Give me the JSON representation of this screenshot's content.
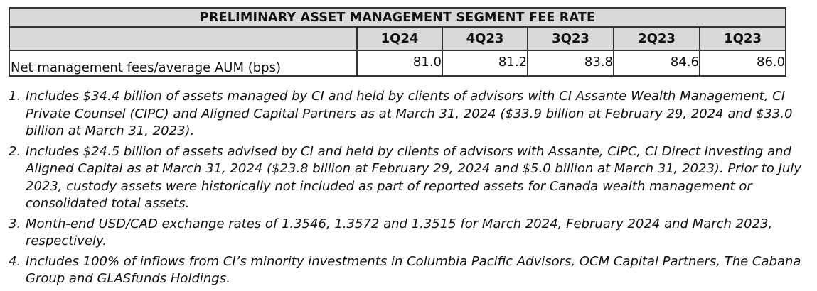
{
  "table": {
    "title": "PRELIMINARY ASSET MANAGEMENT SEGMENT FEE RATE",
    "columns": [
      "1Q24",
      "4Q23",
      "3Q23",
      "2Q23",
      "1Q23"
    ],
    "row": {
      "label": "Net management fees/average AUM (bps)",
      "values": [
        "81.0",
        "81.2",
        "83.8",
        "84.6",
        "86.0"
      ]
    }
  },
  "footnotes": [
    {
      "num": "1.",
      "text": "Includes $34.4 billion of assets managed by CI and held by clients of advisors with CI Assante Wealth Management, CI Private Counsel (CIPC) and Aligned Capital Partners as at March 31, 2024 ($33.9 billion at February 29, 2024 and $33.0 billion at March 31, 2023)."
    },
    {
      "num": "2.",
      "text": "Includes $24.5 billion of assets advised by CI and held by clients of advisors with Assante, CIPC, CI Direct Investing and Aligned Capital as at March 31, 2024 ($23.8 billion at February 29, 2024 and $5.0 billion at March 31, 2023). Prior to July 2023, custody assets were historically not included as part of reported assets for Canada wealth management or consolidated total assets."
    },
    {
      "num": "3.",
      "text": "Month-end USD/CAD exchange rates of 1.3546, 1.3572 and 1.3515 for March 2024, February 2024 and March 2023, respectively."
    },
    {
      "num": "4.",
      "text": "Includes 100% of inflows from CI’s minority investments in Columbia Pacific Advisors, OCM Capital Partners, The Cabana Group and GLASfunds Holdings."
    }
  ]
}
